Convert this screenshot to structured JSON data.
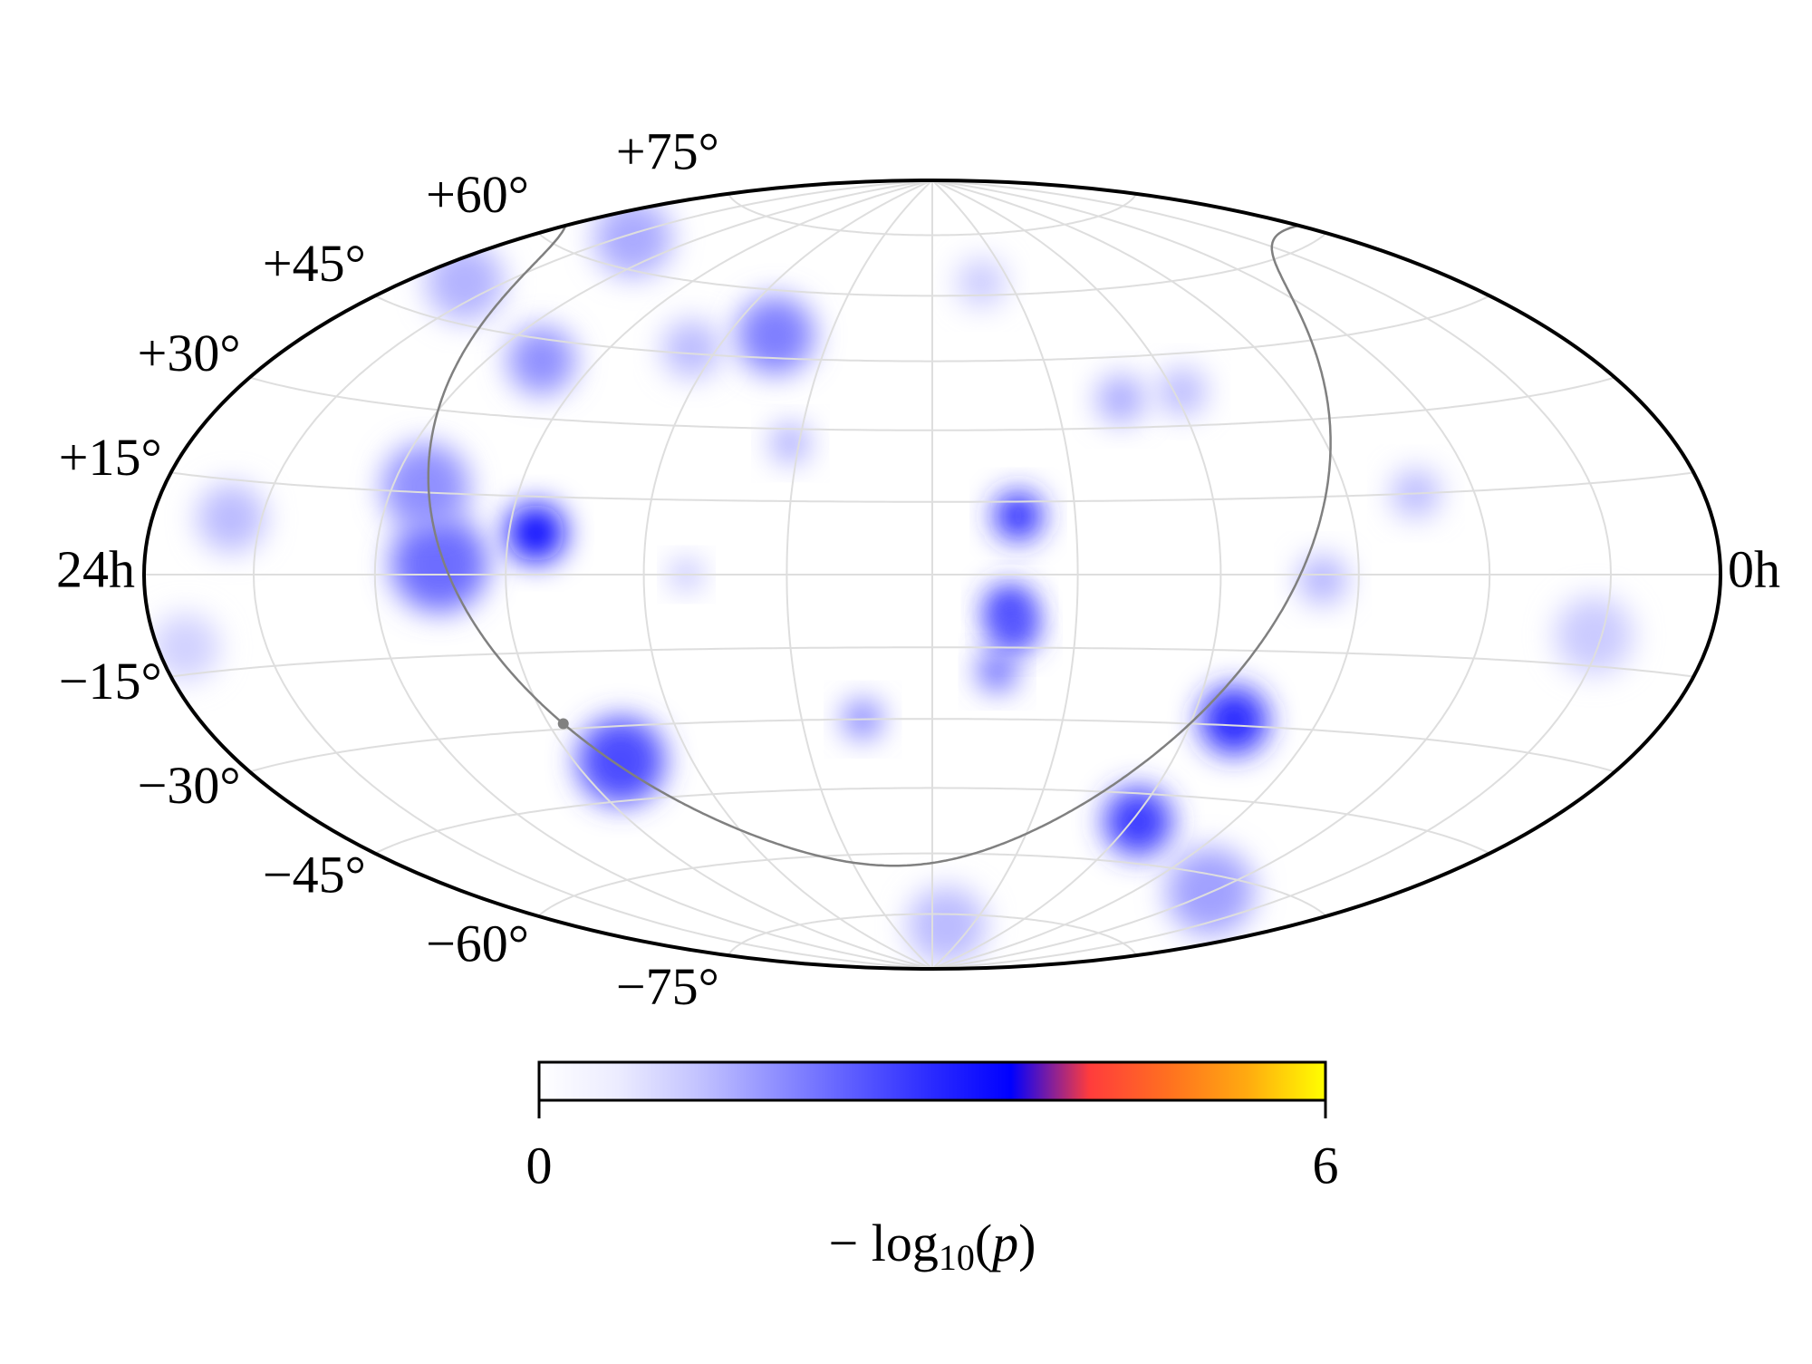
{
  "chart_data": {
    "type": "skymap",
    "projection": "hammer",
    "xlim": [
      360,
      0
    ],
    "ylim": [
      -90,
      90
    ],
    "xticks": [
      {
        "value": 360,
        "label": "24h"
      },
      {
        "value": 0,
        "label": "0h"
      }
    ],
    "meridians": [
      30,
      60,
      90,
      120,
      150,
      180,
      210,
      240,
      270,
      300,
      330
    ],
    "yticks": [
      {
        "value": 75,
        "label": "+75°"
      },
      {
        "value": 60,
        "label": "+60°"
      },
      {
        "value": 45,
        "label": "+45°"
      },
      {
        "value": 30,
        "label": "+30°"
      },
      {
        "value": 15,
        "label": "+15°"
      },
      {
        "value": -15,
        "label": "−15°"
      },
      {
        "value": -30,
        "label": "−30°"
      },
      {
        "value": -45,
        "label": "−45°"
      },
      {
        "value": -60,
        "label": "−60°"
      },
      {
        "value": -75,
        "label": "−75°"
      }
    ],
    "grid": true,
    "galactic_plane": true,
    "colorbar": {
      "clim": [
        0,
        6
      ],
      "ticks": [
        0,
        6
      ],
      "label_parts": [
        "− log",
        "10",
        "(",
        "p",
        ")"
      ],
      "colormap": [
        "#ffffff",
        "#ececff",
        "#c4c4ff",
        "#9090ff",
        "#5c5cff",
        "#2a2aff",
        "#0000ff",
        "#ff3c3c",
        "#ff7020",
        "#ffaa10",
        "#ffff00"
      ]
    },
    "sources": [
      {
        "ra": 264,
        "dec": 8,
        "value": 3.5,
        "radius": 6
      },
      {
        "ra": 162,
        "dec": 12,
        "value": 3.0,
        "radius": 5
      },
      {
        "ra": 164,
        "dec": -7,
        "value": 2.8,
        "radius": 5
      },
      {
        "ra": 163,
        "dec": -11,
        "value": 2.6,
        "radius": 5
      },
      {
        "ra": 166,
        "dec": -20,
        "value": 2.3,
        "radius": 4
      },
      {
        "ra": 110,
        "dec": -29,
        "value": 3.0,
        "radius": 7
      },
      {
        "ra": 118,
        "dec": -51,
        "value": 2.8,
        "radius": 7
      },
      {
        "ra": 258,
        "dec": -37,
        "value": 2.6,
        "radius": 9
      },
      {
        "ra": 285,
        "dec": 2,
        "value": 2.2,
        "radius": 10
      },
      {
        "ra": 292,
        "dec": 16,
        "value": 1.8,
        "radius": 9
      },
      {
        "ra": 226,
        "dec": 50,
        "value": 2.0,
        "radius": 8
      },
      {
        "ra": 285,
        "dec": 41,
        "value": 1.8,
        "radius": 7
      },
      {
        "ra": 342,
        "dec": 51,
        "value": 1.4,
        "radius": 8
      },
      {
        "ra": 325,
        "dec": 65,
        "value": 1.5,
        "radius": 8
      },
      {
        "ra": 134,
        "dec": 36,
        "value": 1.5,
        "radius": 5
      },
      {
        "ra": 118,
        "dec": 37,
        "value": 1.3,
        "radius": 5
      },
      {
        "ra": 196,
        "dec": -30,
        "value": 2.0,
        "radius": 4
      },
      {
        "ra": 212,
        "dec": 27,
        "value": 1.5,
        "radius": 4
      },
      {
        "ra": 231,
        "dec": 0,
        "value": 1.4,
        "radius": 3
      },
      {
        "ra": 338,
        "dec": 9,
        "value": 1.3,
        "radius": 7
      },
      {
        "ra": 98,
        "dec": -1,
        "value": 1.4,
        "radius": 5
      },
      {
        "ra": 74,
        "dec": 15,
        "value": 1.3,
        "radius": 5
      },
      {
        "ra": 61,
        "dec": -63,
        "value": 1.6,
        "radius": 9
      },
      {
        "ra": 169,
        "dec": -78,
        "value": 1.3,
        "radius": 8
      },
      {
        "ra": 32,
        "dec": -10,
        "value": 1.1,
        "radius": 8
      },
      {
        "ra": 161,
        "dec": 63,
        "value": 1.1,
        "radius": 5
      },
      {
        "ra": 352,
        "dec": -11,
        "value": 1.0,
        "radius": 7
      },
      {
        "ra": 247,
        "dec": 46,
        "value": 1.3,
        "radius": 6
      }
    ]
  }
}
